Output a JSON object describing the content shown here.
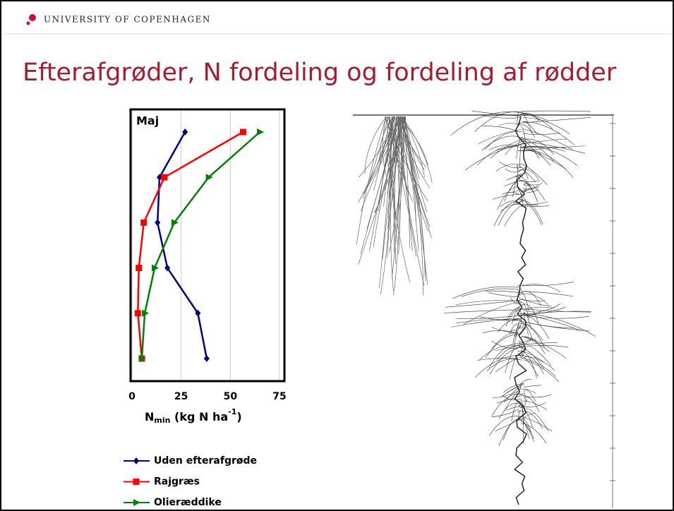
{
  "header": "UNIVERSITY OF COPENHAGEN",
  "slide_title": "Efterafgrøder, N fordeling og fordeling af rødder",
  "chart_data": {
    "type": "line",
    "title": "Maj",
    "orientation": "horizontal",
    "x_label_parts": [
      "N",
      "min",
      " (kg N ha",
      "-1",
      ")"
    ],
    "categories": [
      null,
      null,
      null,
      null,
      null,
      null
    ],
    "xlim": [
      0,
      75
    ],
    "xticks": [
      0,
      25,
      50,
      75
    ],
    "grid": true,
    "series": [
      {
        "name": "Uden efterafgrøde",
        "color": "#000080",
        "marker": "diamond",
        "values": [
          27,
          14,
          13,
          18,
          33.5,
          38
        ]
      },
      {
        "name": "Rajgræs",
        "color": "#ff0000",
        "marker": "square",
        "values": [
          56.5,
          16.5,
          6,
          3.5,
          3,
          5
        ]
      },
      {
        "name": "Olieræddike",
        "color": "#008000",
        "marker": "triangle",
        "values": [
          65,
          39,
          21.5,
          11.5,
          6.5,
          5
        ]
      }
    ]
  }
}
